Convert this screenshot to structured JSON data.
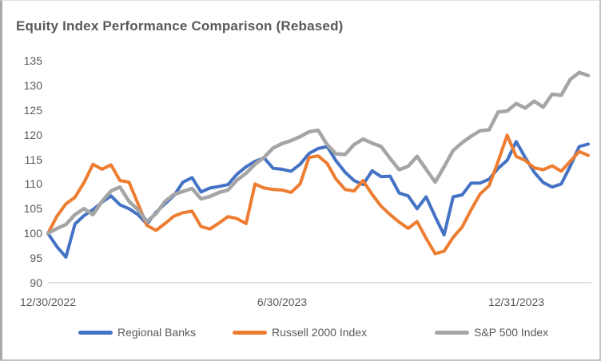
{
  "title": "Equity Index Performance Comparison (Rebased)",
  "colors": {
    "text": "#595959",
    "axis_line": "#d9d9d9",
    "background": "#ffffff",
    "series_blue": "#4472C4",
    "series_orange": "#ED7D31",
    "series_gray": "#A5A5A5"
  },
  "legend": [
    {
      "label": "Regional Banks",
      "color": "#4472C4"
    },
    {
      "label": "Russell 2000 Index",
      "color": "#ED7D31"
    },
    {
      "label": "S&P 500 Index",
      "color": "#A5A5A5"
    }
  ],
  "chart_data": {
    "type": "line",
    "title": "Equity Index Performance Comparison (Rebased)",
    "xlabel": "",
    "ylabel": "",
    "ylim": [
      90,
      135
    ],
    "y_ticks": [
      135,
      130,
      125,
      120,
      115,
      110,
      105,
      100,
      95,
      90
    ],
    "grid": false,
    "legend_position": "bottom",
    "x_tick_labels": [
      "12/30/2022",
      "6/30/2023",
      "12/31/2023"
    ],
    "x_tick_indices": [
      0,
      26,
      52
    ],
    "n_points": 61,
    "x_frequency": "weekly",
    "series": [
      {
        "name": "Regional Banks",
        "color": "#4472C4",
        "values": [
          100.0,
          97.3,
          95.2,
          101.9,
          103.6,
          104.8,
          106.3,
          107.6,
          105.8,
          105.0,
          103.8,
          101.9,
          104.3,
          106.0,
          107.7,
          110.4,
          111.3,
          108.4,
          109.2,
          109.5,
          109.9,
          112.0,
          113.5,
          114.6,
          115.3,
          113.2,
          113.0,
          112.6,
          114.0,
          116.2,
          117.2,
          117.6,
          114.7,
          112.4,
          110.7,
          109.9,
          112.7,
          111.5,
          111.6,
          108.2,
          107.6,
          105.0,
          107.4,
          103.4,
          99.7,
          107.4,
          107.8,
          110.2,
          110.2,
          111.0,
          113.2,
          114.8,
          118.6,
          115.4,
          112.4,
          110.3,
          109.4,
          110.0,
          113.6,
          117.6,
          118.1
        ]
      },
      {
        "name": "Russell 2000 Index",
        "color": "#ED7D31",
        "values": [
          100.0,
          103.5,
          106.0,
          107.3,
          110.3,
          114.0,
          113.0,
          113.9,
          110.7,
          110.4,
          106.0,
          101.6,
          100.6,
          102.0,
          103.5,
          104.2,
          104.5,
          101.4,
          100.9,
          102.1,
          103.4,
          103.0,
          102.0,
          110.0,
          109.2,
          108.9,
          108.8,
          108.3,
          110.0,
          115.4,
          115.7,
          114.2,
          111.0,
          108.9,
          108.6,
          110.7,
          107.9,
          105.5,
          103.8,
          102.3,
          101.0,
          102.4,
          99.0,
          95.9,
          96.4,
          99.2,
          101.3,
          104.8,
          108.0,
          109.7,
          114.6,
          119.9,
          115.6,
          114.8,
          113.3,
          112.9,
          113.7,
          112.6,
          114.6,
          116.6,
          115.8
        ]
      },
      {
        "name": "S&P 500 Index",
        "color": "#A5A5A5",
        "values": [
          100.0,
          101.0,
          101.8,
          103.8,
          105.0,
          103.8,
          106.5,
          108.6,
          109.4,
          106.5,
          104.8,
          102.4,
          104.0,
          106.5,
          107.9,
          108.5,
          109.1,
          107.0,
          107.5,
          108.3,
          108.8,
          110.8,
          112.2,
          114.0,
          115.4,
          117.3,
          118.2,
          118.8,
          119.6,
          120.6,
          120.9,
          118.0,
          116.1,
          116.0,
          118.0,
          119.1,
          118.3,
          117.6,
          115.2,
          112.9,
          113.6,
          115.6,
          113.0,
          110.4,
          113.5,
          116.8,
          118.4,
          119.7,
          120.8,
          121.0,
          124.6,
          124.8,
          126.3,
          125.4,
          126.8,
          125.6,
          128.2,
          128.0,
          131.2,
          132.6,
          132.0
        ]
      }
    ]
  }
}
